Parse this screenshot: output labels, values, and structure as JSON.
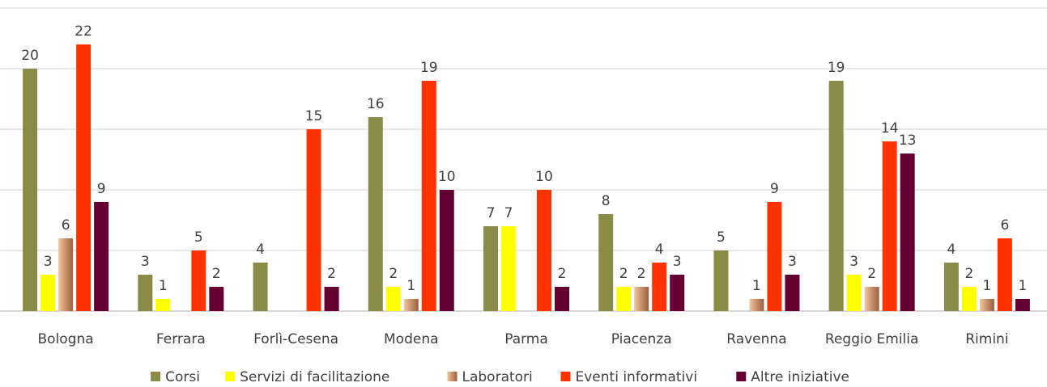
{
  "chart_data": {
    "type": "bar",
    "categories": [
      "Bologna",
      "Ferrara",
      "Forlì-Cesena",
      "Modena",
      "Parma",
      "Piacenza",
      "Ravenna",
      "Reggio Emilia",
      "Rimini"
    ],
    "series": [
      {
        "name": "Corsi",
        "color": "#8b8b47",
        "values": [
          20,
          3,
          4,
          16,
          7,
          8,
          5,
          19,
          4
        ]
      },
      {
        "name": "Servizi di facilitazione",
        "color": "#ffff00",
        "values": [
          3,
          1,
          null,
          2,
          7,
          2,
          null,
          3,
          2
        ]
      },
      {
        "name": "Laboratori",
        "color": "#c8906a",
        "values": [
          6,
          null,
          null,
          1,
          null,
          2,
          1,
          2,
          1
        ]
      },
      {
        "name": "Eventi informativi",
        "color": "#ff3300",
        "values": [
          22,
          5,
          15,
          19,
          10,
          4,
          9,
          14,
          6
        ]
      },
      {
        "name": "Altre iniziative",
        "color": "#660033",
        "values": [
          9,
          2,
          2,
          10,
          2,
          3,
          3,
          13,
          1
        ]
      }
    ],
    "ylim": [
      0,
      25
    ],
    "yticks": [
      0,
      5,
      10,
      15,
      20,
      25
    ],
    "grid": true,
    "legend": "bottom"
  }
}
